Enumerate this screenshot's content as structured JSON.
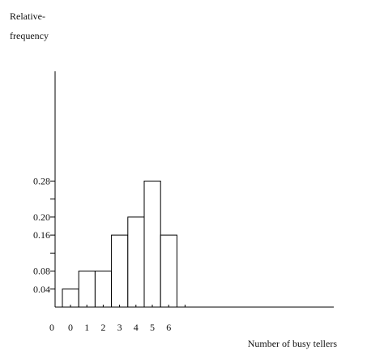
{
  "chart_data": {
    "type": "bar",
    "ylabel_lines": [
      "Relative-",
      "frequency"
    ],
    "xlabel": "Number of busy tellers",
    "x_origin_label": "0",
    "categories": [
      "0",
      "1",
      "2",
      "3",
      "4",
      "5",
      "6"
    ],
    "values": [
      0.04,
      0.08,
      0.08,
      0.16,
      0.2,
      0.28,
      0.16
    ],
    "yticks": [
      0.04,
      0.08,
      0.16,
      0.2,
      0.28
    ],
    "ytick_labels": [
      "0.04",
      "0.08",
      "0.16",
      "0.20",
      "0.28"
    ],
    "ylim": [
      0,
      0.52
    ],
    "grid": false,
    "colors": {
      "bar_fill": "#ffffff",
      "bar_edge": "#000000",
      "axis": "#000000"
    }
  }
}
